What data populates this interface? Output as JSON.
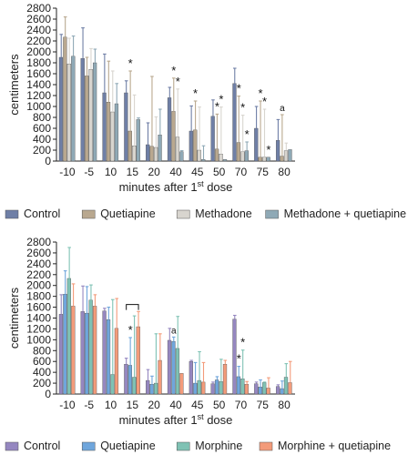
{
  "chart_data": [
    {
      "type": "bar",
      "ylabel": "centimeters",
      "xlabel": "minutes after 1",
      "xlabel_sup": "st",
      "xlabel_tail": " dose",
      "ylim": [
        0,
        2800
      ],
      "yticks": [
        "0",
        "200",
        "400",
        "600",
        "800",
        "1000",
        "1200",
        "1400",
        "1600",
        "1800",
        "2000",
        "2200",
        "2400",
        "2600",
        "2800"
      ],
      "categories": [
        "-10",
        "-5",
        "10",
        "15",
        "20",
        "40",
        "45",
        "50",
        "70",
        "75",
        "80"
      ],
      "series": [
        {
          "name": "Control",
          "color": "#6f7fa6",
          "values": [
            1900,
            1880,
            1250,
            1250,
            300,
            1160,
            550,
            820,
            1420,
            600,
            380
          ],
          "err": [
            2320,
            2440,
            1960,
            1470,
            700,
            1350,
            1010,
            1120,
            1700,
            1000,
            760
          ]
        },
        {
          "name": "Quetiapine",
          "color": "#b9a88f",
          "values": [
            2270,
            1560,
            1080,
            550,
            270,
            910,
            570,
            220,
            340,
            70,
            90
          ],
          "err": [
            2640,
            1900,
            1830,
            1650,
            1550,
            1520,
            1100,
            860,
            1190,
            1100,
            850
          ]
        },
        {
          "name": "Methadone",
          "color": "#d8d5cf",
          "values": [
            1780,
            1680,
            900,
            280,
            250,
            440,
            200,
            130,
            170,
            70,
            190
          ],
          "err": [
            2250,
            2060,
            1650,
            1210,
            810,
            1320,
            990,
            990,
            840,
            950,
            330
          ]
        },
        {
          "name": "Methadone + quetiapine",
          "color": "#8fa9b6",
          "values": [
            1920,
            1800,
            1050,
            760,
            480,
            170,
            30,
            30,
            190,
            70,
            210
          ],
          "err": [
            2290,
            2050,
            1420,
            790,
            950,
            190,
            280,
            0,
            350,
            0,
            0
          ]
        }
      ],
      "annotations": [
        {
          "cat": "15",
          "label": "*"
        },
        {
          "cat": "40",
          "label": "*"
        },
        {
          "cat": "40",
          "label": "*"
        },
        {
          "cat": "45",
          "label": "*"
        },
        {
          "cat": "50",
          "label": "*"
        },
        {
          "cat": "50",
          "label": "*"
        },
        {
          "cat": "70",
          "label": "*"
        },
        {
          "cat": "70",
          "label": "*"
        },
        {
          "cat": "70",
          "label": "*"
        },
        {
          "cat": "75",
          "label": "*"
        },
        {
          "cat": "75",
          "label": "*"
        },
        {
          "cat": "75",
          "label": "*"
        },
        {
          "cat": "80",
          "label": "a"
        }
      ]
    },
    {
      "type": "bar",
      "ylabel": "centimeters",
      "xlabel": "minutes after 1",
      "xlabel_sup": "st",
      "xlabel_tail": " dose",
      "ylim": [
        0,
        2800
      ],
      "yticks": [
        "0",
        "200",
        "400",
        "600",
        "800",
        "1000",
        "1200",
        "1400",
        "1600",
        "1800",
        "2000",
        "2200",
        "2400",
        "2600",
        "2800"
      ],
      "categories": [
        "-10",
        "-5",
        "10",
        "15",
        "20",
        "40",
        "45",
        "50",
        "70",
        "75",
        "80"
      ],
      "series": [
        {
          "name": "Control",
          "color": "#9587c0",
          "values": [
            1470,
            1520,
            1530,
            550,
            250,
            990,
            600,
            190,
            1380,
            190,
            140
          ],
          "err": [
            1830,
            1990,
            1580,
            660,
            450,
            1210,
            620,
            220,
            1450,
            220,
            170
          ]
        },
        {
          "name": "Quetiapine",
          "color": "#6fa6dc",
          "values": [
            1840,
            1490,
            1370,
            530,
            180,
            970,
            200,
            260,
            320,
            130,
            100
          ],
          "err": [
            2270,
            1980,
            1600,
            1040,
            330,
            1050,
            580,
            320,
            510,
            260,
            240
          ]
        },
        {
          "name": "Morphine",
          "color": "#7fc2b4",
          "values": [
            2130,
            1730,
            360,
            310,
            200,
            840,
            250,
            230,
            280,
            210,
            310
          ],
          "err": [
            2700,
            2010,
            1740,
            1440,
            1110,
            1430,
            780,
            640,
            810,
            220,
            560
          ]
        },
        {
          "name": "Morphine + quetiapine",
          "color": "#f39b7a",
          "values": [
            1620,
            1620,
            1210,
            1240,
            620,
            380,
            220,
            550,
            180,
            110,
            210
          ],
          "err": [
            2030,
            1830,
            1760,
            1520,
            1110,
            380,
            580,
            620,
            230,
            300,
            600
          ]
        }
      ],
      "annotations": [
        {
          "cat": "15",
          "label": "*"
        },
        {
          "cat": "40",
          "label": "a"
        },
        {
          "cat": "70",
          "label": "*"
        },
        {
          "cat": "70",
          "label": "*"
        }
      ]
    }
  ],
  "legend_top": [
    "Control",
    "Quetiapine",
    "Methadone",
    "Methadone + quetiapine"
  ],
  "legend_bottom": [
    "Control",
    "Quetiapine",
    "Morphine",
    "Morphine + quetiapine"
  ]
}
